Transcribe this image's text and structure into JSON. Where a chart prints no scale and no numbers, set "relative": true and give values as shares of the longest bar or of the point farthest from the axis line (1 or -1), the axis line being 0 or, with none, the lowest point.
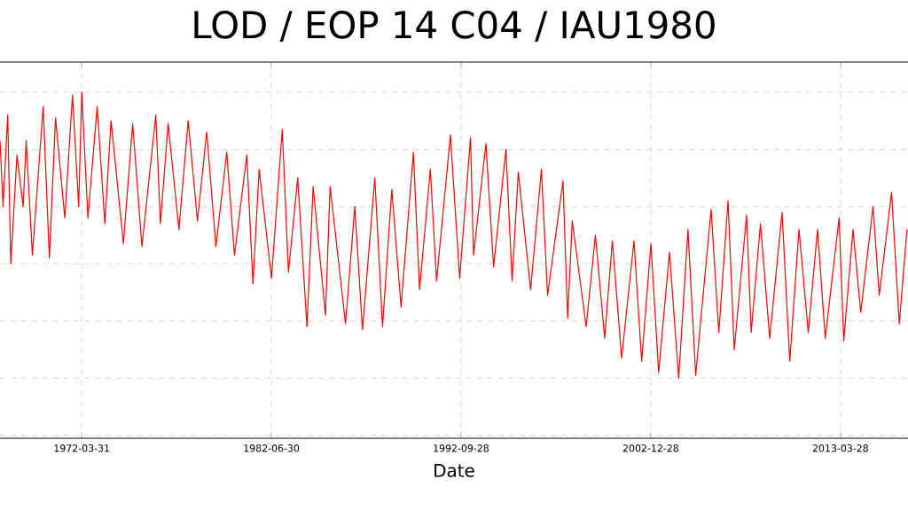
{
  "chart_data": {
    "type": "line",
    "title": "LOD / EOP 14 C04 / IAU1980",
    "xlabel": "Date",
    "relative": true,
    "grid": true,
    "marker": "none",
    "line_style": "solid",
    "xlim": [
      "1967-11-01",
      "2016-11-21"
    ],
    "xticks": [
      "1972-03-31",
      "1982-06-30",
      "1992-09-28",
      "2002-12-28",
      "2013-03-28"
    ],
    "series": [
      {
        "color": "#ff0000",
        "x": [
          "1967-11",
          "1968-01",
          "1968-04",
          "1968-06",
          "1968-10",
          "1969-02",
          "1969-04",
          "1969-08",
          "1970-03",
          "1970-07",
          "1970-11",
          "1971-05",
          "1971-10",
          "1972-02",
          "1972-04",
          "1972-08",
          "1973-02",
          "1973-07",
          "1973-11",
          "1974-07",
          "1975-01",
          "1975-07",
          "1976-04",
          "1976-07",
          "1976-12",
          "1977-07",
          "1978-01",
          "1978-07",
          "1979-01",
          "1979-07",
          "1980-02",
          "1980-07",
          "1981-03",
          "1981-07",
          "1981-11",
          "1982-07",
          "1983-02",
          "1983-06",
          "1983-12",
          "1984-06",
          "1984-10",
          "1985-06",
          "1985-09",
          "1986-07",
          "1987-01",
          "1987-06",
          "1988-02",
          "1988-07",
          "1989-01",
          "1989-07",
          "1990-03",
          "1990-07",
          "1991-02",
          "1991-06",
          "1992-03",
          "1992-09",
          "1993-04",
          "1993-06",
          "1994-02",
          "1994-07",
          "1995-03",
          "1995-07",
          "1995-11",
          "1996-07",
          "1997-02",
          "1997-06",
          "1998-04",
          "1998-07",
          "1998-10",
          "1999-07",
          "2000-01",
          "2000-07",
          "2000-12",
          "2001-06",
          "2002-02",
          "2002-07",
          "2003-01",
          "2003-06",
          "2004-01",
          "2004-07",
          "2005-01",
          "2005-06",
          "2006-04",
          "2006-09",
          "2007-03",
          "2007-07",
          "2008-03",
          "2008-06",
          "2008-12",
          "2009-06",
          "2010-02",
          "2010-07",
          "2011-01",
          "2011-07",
          "2012-01",
          "2012-06",
          "2013-03",
          "2013-06",
          "2013-12",
          "2014-05",
          "2015-01",
          "2015-05",
          "2016-01",
          "2016-06",
          "2016-11"
        ],
        "values": [
          0.83,
          0.6,
          0.92,
          0.4,
          0.78,
          0.6,
          0.83,
          0.43,
          0.95,
          0.42,
          0.91,
          0.56,
          0.99,
          0.6,
          1.0,
          0.56,
          0.95,
          0.54,
          0.9,
          0.47,
          0.89,
          0.46,
          0.92,
          0.54,
          0.89,
          0.52,
          0.9,
          0.55,
          0.86,
          0.46,
          0.79,
          0.43,
          0.78,
          0.33,
          0.73,
          0.35,
          0.87,
          0.37,
          0.7,
          0.18,
          0.67,
          0.22,
          0.67,
          0.19,
          0.6,
          0.17,
          0.7,
          0.18,
          0.66,
          0.25,
          0.79,
          0.31,
          0.73,
          0.34,
          0.85,
          0.35,
          0.84,
          0.43,
          0.82,
          0.39,
          0.8,
          0.34,
          0.72,
          0.31,
          0.73,
          0.29,
          0.69,
          0.21,
          0.55,
          0.18,
          0.5,
          0.14,
          0.48,
          0.07,
          0.48,
          0.06,
          0.47,
          0.02,
          0.44,
          0.0,
          0.52,
          0.01,
          0.59,
          0.16,
          0.62,
          0.1,
          0.57,
          0.16,
          0.54,
          0.14,
          0.58,
          0.06,
          0.52,
          0.16,
          0.52,
          0.14,
          0.56,
          0.13,
          0.52,
          0.23,
          0.6,
          0.29,
          0.65,
          0.19,
          0.52
        ]
      }
    ]
  }
}
